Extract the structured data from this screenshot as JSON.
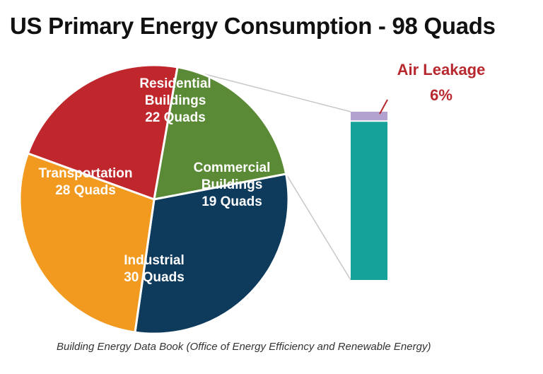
{
  "chart_data": {
    "type": "pie",
    "title": "US Primary Energy Consumption - 98 Quads",
    "source": "Building Energy Data Book (Office of Energy Efficiency and Renewable Energy)",
    "total": 98,
    "unit": "Quads",
    "slices": [
      {
        "name": "Residential Buildings",
        "label_lines": [
          "Residential",
          "Buildings",
          "22 Quads"
        ],
        "value": 22,
        "color": "#c0272d"
      },
      {
        "name": "Commercial Buildings",
        "label_lines": [
          "Commercial",
          "Buildings",
          "19 Quads"
        ],
        "value": 19,
        "color": "#5a8a35"
      },
      {
        "name": "Industrial",
        "label_lines": [
          "Industrial",
          "30 Quads"
        ],
        "value": 30,
        "color": "#0e3a5c"
      },
      {
        "name": "Transportation",
        "label_lines": [
          "Transportation",
          "28 Quads"
        ],
        "value": 28,
        "color": "#f29a1f"
      }
    ],
    "breakdown": {
      "of": "Commercial Buildings",
      "segments": [
        {
          "label_lines": [
            "Air Leakage",
            "6%"
          ],
          "value": 6,
          "color": "#b3a2d0",
          "label_color": "#b8292f"
        },
        {
          "label_lines": [],
          "value": 94,
          "color": "#14a29a"
        }
      ]
    }
  }
}
